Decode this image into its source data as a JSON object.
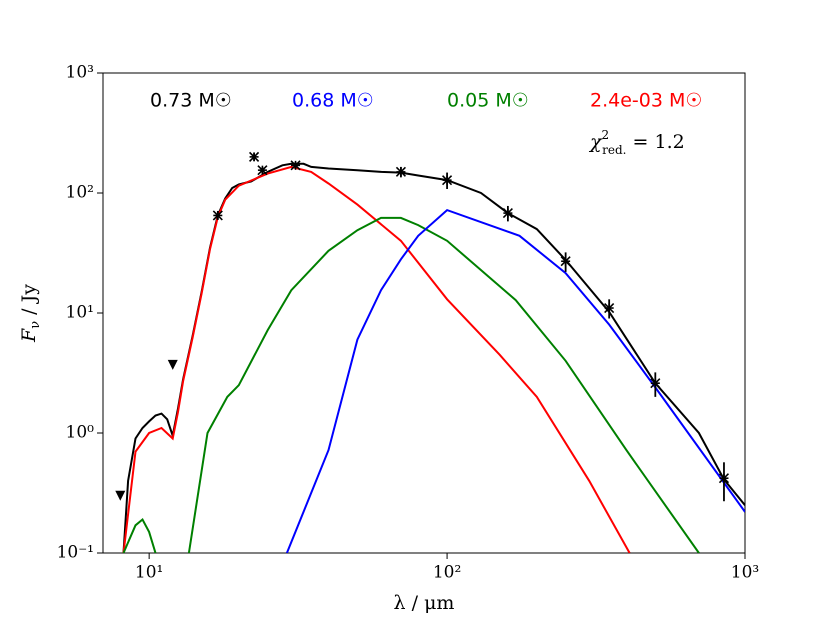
{
  "chart_data": {
    "type": "line",
    "xlabel": "λ / μm",
    "ylabel": {
      "base": "F",
      "sub": "ν",
      "tail": " / Jy"
    },
    "log_x": true,
    "log_y": true,
    "xlim": [
      7,
      1000
    ],
    "ylim": [
      0.1,
      1000
    ],
    "xticks": [
      {
        "value": 10,
        "label": "10¹"
      },
      {
        "value": 100,
        "label": "10²"
      },
      {
        "value": 1000,
        "label": "10³"
      }
    ],
    "yticks": [
      {
        "value": 0.1,
        "label": "10⁻¹"
      },
      {
        "value": 1,
        "label": "10⁰"
      },
      {
        "value": 10,
        "label": "10¹"
      },
      {
        "value": 100,
        "label": "10²"
      },
      {
        "value": 1000,
        "label": "10³"
      }
    ],
    "annotations": [
      {
        "text": "0.73 M☉",
        "color": "#000000"
      },
      {
        "text": "0.68 M☉",
        "color": "#0000ff"
      },
      {
        "text": "0.05 M☉",
        "color": "#008000"
      },
      {
        "text": "2.4e-03 M☉",
        "color": "#ff0000"
      }
    ],
    "chi2": {
      "base": "χ",
      "sup": "2",
      "sub": "red.",
      "tail": " = 1.2"
    },
    "series": [
      {
        "color": "#000000",
        "x": [
          8.2,
          8.5,
          9,
          9.5,
          10,
          10.5,
          11,
          11.5,
          12,
          12.5,
          13,
          14,
          15,
          16,
          17,
          18,
          19,
          20,
          22,
          25,
          28,
          30,
          33,
          35,
          40,
          50,
          60,
          70,
          80,
          100,
          130,
          160,
          200,
          250,
          350,
          500,
          700,
          850,
          1000
        ],
        "values": [
          0.1,
          0.4,
          0.9,
          1.1,
          1.25,
          1.4,
          1.45,
          1.3,
          0.95,
          1.6,
          2.8,
          6.5,
          15,
          35,
          65,
          90,
          110,
          118,
          125,
          150,
          170,
          175,
          175,
          165,
          160,
          155,
          150,
          148,
          140,
          128,
          100,
          68,
          50,
          27.7,
          10.2,
          2.6,
          1.0,
          0.41,
          0.25
        ]
      },
      {
        "color": "#ff0000",
        "x": [
          8.2,
          9,
          10,
          11,
          12,
          12.5,
          13,
          14,
          15,
          16,
          17,
          18,
          20,
          25,
          30,
          35,
          40,
          50,
          70,
          100,
          150,
          200,
          300,
          410
        ],
        "values": [
          0.1,
          0.7,
          1.0,
          1.1,
          0.9,
          1.5,
          2.7,
          6.3,
          14.5,
          34,
          63,
          88,
          115,
          145,
          165,
          150,
          120,
          80,
          40,
          13,
          4.5,
          2.0,
          0.4,
          0.1
        ]
      },
      {
        "color": "#008000",
        "x": [
          8.2,
          9,
          9.5,
          10,
          10.5,
          null,
          13.6,
          15.7,
          18.3,
          20,
          25,
          30,
          40,
          50,
          60,
          70,
          80,
          100,
          170,
          250,
          400,
          700
        ],
        "values": [
          0.1,
          0.17,
          0.19,
          0.15,
          0.1,
          null,
          0.1,
          1.0,
          2.0,
          2.5,
          7.2,
          15.5,
          33,
          49,
          62,
          62,
          54,
          40,
          12.8,
          4,
          0.72,
          0.1
        ]
      },
      {
        "color": "#0000ff",
        "x": [
          29,
          40,
          50,
          60,
          70,
          80,
          100,
          175,
          250,
          350,
          500,
          1000
        ],
        "values": [
          0.1,
          0.72,
          6,
          15.5,
          28,
          44,
          72,
          44,
          21.5,
          8,
          2.4,
          0.22
        ]
      }
    ],
    "points": {
      "color": "#000000",
      "x": [
        17,
        22.5,
        24,
        31,
        70,
        100,
        160,
        250,
        350,
        500,
        850
      ],
      "values": [
        65,
        200,
        155,
        170,
        150,
        128,
        68,
        27,
        11,
        2.6,
        0.42
      ],
      "errors": [
        5,
        15,
        10,
        10,
        15,
        20,
        10,
        5,
        2,
        0.6,
        0.15
      ]
    },
    "upper_limits": {
      "color": "#000000",
      "x": [
        8,
        12
      ],
      "values": [
        0.3,
        3.7
      ]
    }
  }
}
